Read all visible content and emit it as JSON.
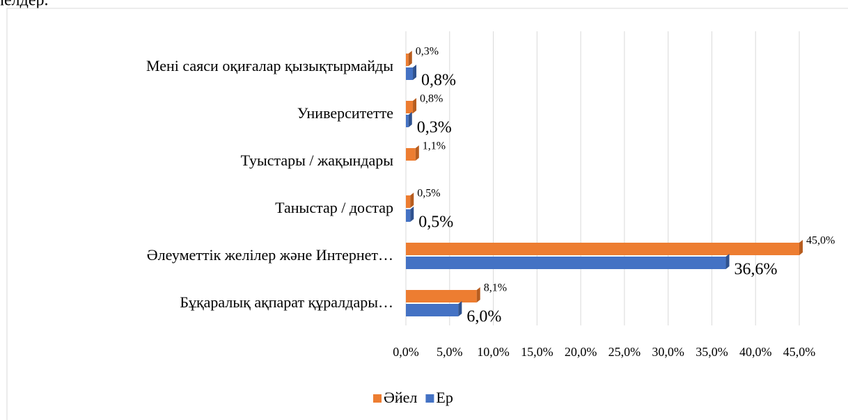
{
  "page_fragment": "лелдер.",
  "chart_data": {
    "type": "hbar",
    "categories": [
      "Мені саяси оқиғалар қызықтырмайды",
      "Университетте",
      "Туыстары / жақындары",
      "Таныстар / достар",
      "Әлеуметтік желілер және Интернет…",
      "Бұқаралық ақпарат құралдары…"
    ],
    "series": [
      {
        "name": "Әйел",
        "color": "#ed7d31",
        "values": [
          0.3,
          0.8,
          1.1,
          0.5,
          45.0,
          8.1
        ],
        "value_labels": [
          "0,3%",
          "0,8%",
          "1,1%",
          "0,5%",
          "45,0%",
          "8,1%"
        ]
      },
      {
        "name": "Ер",
        "color": "#4472c4",
        "values": [
          0.8,
          0.3,
          null,
          0.5,
          36.6,
          6.0
        ],
        "value_labels": [
          "0,8%",
          "0,3%",
          null,
          "0,5%",
          "36,6%",
          "6,0%"
        ]
      }
    ],
    "xlim": [
      0,
      45
    ],
    "xticks": [
      {
        "value": 0,
        "label": "0,0%"
      },
      {
        "value": 5,
        "label": "5,0%"
      },
      {
        "value": 10,
        "label": "10,0%"
      },
      {
        "value": 15,
        "label": "15,0%"
      },
      {
        "value": 20,
        "label": "20,0%"
      },
      {
        "value": 25,
        "label": "25,0%"
      },
      {
        "value": 30,
        "label": "30,0%"
      },
      {
        "value": 35,
        "label": "35,0%"
      },
      {
        "value": 40,
        "label": "40,0%"
      },
      {
        "value": 45,
        "label": "45,0%"
      }
    ],
    "grid": true,
    "legend": "bottom"
  }
}
